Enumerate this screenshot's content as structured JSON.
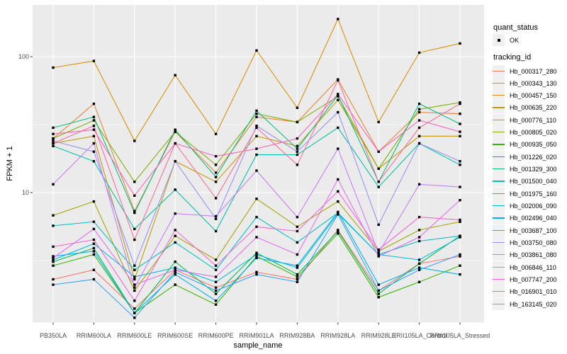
{
  "chart_data": {
    "type": "line",
    "title": "",
    "xlabel": "sample_name",
    "ylabel": "FPKM + 1",
    "y_scale": "log10",
    "y_ticks": [
      100,
      10
    ],
    "y_minor_breaks": [
      31.62,
      3.162
    ],
    "ylim": [
      1.1,
      240
    ],
    "grid": true,
    "legend_position": "right",
    "point_style": "small black square (quant_status OK)",
    "x_categories": [
      "PB350LA",
      "RRIM600LA",
      "RRIM600LE",
      "RRIM600SE",
      "RRIM600PE",
      "RRIM901LA",
      "RRIM928BA",
      "RRIM928LA",
      "RRIM928LE",
      "RRII105LA_Control",
      "RRII105LA_Stressed"
    ],
    "series": [
      {
        "name": "Hb_000317_280",
        "color": "#F8766D",
        "values": [
          2.3,
          2.7,
          1.4,
          2.7,
          2.0,
          2.6,
          2.3,
          5.3,
          1.9,
          3.0,
          3.4
        ]
      },
      {
        "name": "Hb_000343_130",
        "color": "#EA8331",
        "values": [
          25,
          45,
          7.3,
          28,
          14,
          36,
          33,
          68,
          20,
          39,
          38
        ]
      },
      {
        "name": "Hb_000457_150",
        "color": "#D89000",
        "values": [
          83,
          93,
          24,
          73,
          27,
          111,
          42,
          189,
          33,
          107,
          125
        ]
      },
      {
        "name": "Hb_000635_220",
        "color": "#C09B00",
        "values": [
          23,
          26,
          2.3,
          17,
          12,
          26,
          22,
          48,
          15,
          26,
          26
        ]
      },
      {
        "name": "Hb_000776_110",
        "color": "#A3A500",
        "values": [
          6.8,
          8.6,
          1.9,
          4.8,
          3.2,
          9.0,
          5.6,
          8.6,
          3.7,
          5.3,
          6.1
        ]
      },
      {
        "name": "Hb_000805_020",
        "color": "#7CAE00",
        "values": [
          25,
          34,
          12,
          28,
          16,
          38,
          33,
          51,
          15,
          41,
          46
        ]
      },
      {
        "name": "Hb_000935_050",
        "color": "#39B600",
        "values": [
          2.9,
          3.5,
          1.3,
          2.1,
          1.5,
          3.4,
          2.4,
          5.0,
          1.7,
          2.2,
          2.9
        ]
      },
      {
        "name": "Hb_001226_020",
        "color": "#00BB4E",
        "values": [
          3.1,
          3.9,
          1.3,
          3.1,
          1.8,
          3.6,
          2.5,
          5.2,
          1.8,
          3.0,
          4.8
        ]
      },
      {
        "name": "Hb_001329_300",
        "color": "#00BF7D",
        "values": [
          30,
          36,
          7.1,
          29,
          13,
          40,
          21,
          52,
          12,
          45,
          32
        ]
      },
      {
        "name": "Hb_001500_040",
        "color": "#00C1A3",
        "values": [
          22,
          17,
          5.4,
          10.5,
          5.2,
          19,
          19,
          30,
          11,
          23,
          16
        ]
      },
      {
        "name": "Hb_001975_160",
        "color": "#00BFC4",
        "values": [
          5.7,
          6.1,
          2.7,
          4.3,
          2.7,
          6.6,
          4.3,
          7.1,
          3.5,
          4.4,
          4.8
        ]
      },
      {
        "name": "Hb_002006_090",
        "color": "#00BAE0",
        "values": [
          3.2,
          4.2,
          2.4,
          2.8,
          2.2,
          3.5,
          2.8,
          7.0,
          3.5,
          3.2,
          4.7
        ]
      },
      {
        "name": "Hb_002496_040",
        "color": "#00B0F6",
        "values": [
          3.4,
          3.7,
          1.3,
          2.5,
          1.6,
          3.3,
          2.9,
          7.2,
          2.1,
          2.8,
          2.5
        ]
      },
      {
        "name": "Hb_003687_100",
        "color": "#35A2FF",
        "values": [
          2.1,
          2.3,
          1.2,
          2.6,
          1.9,
          2.5,
          2.2,
          6.9,
          1.9,
          2.7,
          3.5
        ]
      },
      {
        "name": "Hb_003750_080",
        "color": "#9590FF",
        "values": [
          24,
          20,
          2.9,
          17,
          6.4,
          31,
          20,
          39,
          5.8,
          23,
          17
        ]
      },
      {
        "name": "Hb_003861_080",
        "color": "#C77CFF",
        "values": [
          11.5,
          23,
          2.0,
          7.0,
          6.7,
          14.5,
          6.6,
          21,
          3.6,
          11.5,
          11
        ]
      },
      {
        "name": "Hb_006846_110",
        "color": "#E76BF3",
        "values": [
          3.3,
          5.4,
          2.1,
          2.7,
          2.4,
          4.7,
          3.5,
          12.5,
          3.4,
          4.7,
          8.8
        ]
      },
      {
        "name": "Hb_007747_200",
        "color": "#FA62DB",
        "values": [
          4.0,
          4.5,
          1.6,
          5.3,
          2.9,
          5.6,
          5.2,
          10.2,
          3.8,
          6.6,
          6.3
        ]
      },
      {
        "name": "Hb_016901_010",
        "color": "#FF62BC",
        "values": [
          27,
          29,
          9.5,
          23,
          18.5,
          21,
          25,
          53,
          20,
          34,
          28
        ]
      },
      {
        "name": "Hb_163145_020",
        "color": "#FF6A98",
        "values": [
          23,
          31,
          4.5,
          23,
          9.1,
          30,
          16,
          67,
          12,
          30,
          45
        ]
      }
    ]
  },
  "legend": {
    "quant_status_title": "quant_status",
    "quant_status_items": [
      "OK"
    ],
    "tracking_id_title": "tracking_id"
  },
  "colors": {
    "panel_bg": "#EBEBEB",
    "grid": "#FFFFFF",
    "tick": "#333333",
    "tick_label": "#4D4D4D",
    "point": "#000000",
    "legend_key_bg": "#F0F0F0"
  }
}
